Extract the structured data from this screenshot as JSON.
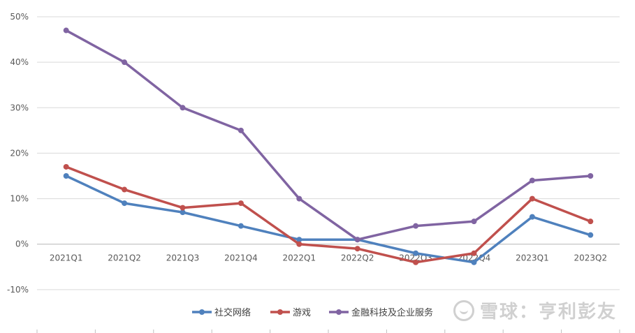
{
  "chart_data": {
    "type": "line",
    "title": "",
    "xlabel": "",
    "ylabel": "",
    "categories": [
      "2021Q1",
      "2021Q2",
      "2021Q3",
      "2021Q4",
      "2022Q1",
      "2022Q2",
      "2022Q3",
      "2022Q4",
      "2023Q1",
      "2023Q2"
    ],
    "y_ticks": [
      "-10%",
      "0%",
      "10%",
      "20%",
      "30%",
      "40%",
      "50%"
    ],
    "ylim": [
      -0.1,
      0.5
    ],
    "grid": true,
    "legend_position": "bottom-center",
    "series": [
      {
        "name": "社交网络",
        "color": "#4F81BD",
        "values": [
          0.15,
          0.09,
          0.07,
          0.04,
          0.01,
          0.01,
          -0.02,
          -0.04,
          0.06,
          0.02
        ]
      },
      {
        "name": "游戏",
        "color": "#C0504D",
        "values": [
          0.17,
          0.12,
          0.08,
          0.09,
          0.0,
          -0.01,
          -0.04,
          -0.02,
          0.1,
          0.05
        ]
      },
      {
        "name": "金融科技及企业服务",
        "color": "#8064A2",
        "values": [
          0.47,
          0.4,
          0.3,
          0.25,
          0.1,
          0.01,
          0.04,
          0.05,
          0.14,
          0.15
        ]
      }
    ]
  },
  "watermark": {
    "text": "雪球：亨利彭友"
  }
}
